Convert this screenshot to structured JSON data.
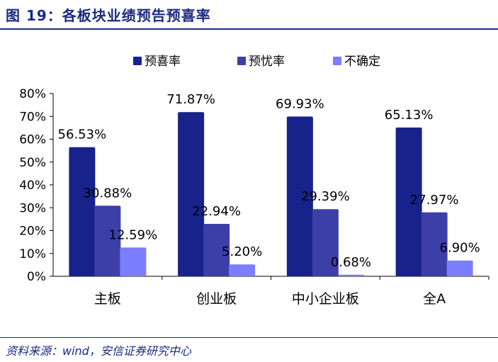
{
  "header": {
    "title": "图 19：各板块业绩预告预喜率"
  },
  "source": {
    "text": "资料来源：wind，安信证券研究中心"
  },
  "colors": {
    "预喜率": "#17238a",
    "预忧率": "#3d3fa8",
    "不确定": "#7b7eff"
  },
  "chart_data": {
    "type": "bar",
    "categories": [
      "主板",
      "创业板",
      "中小企业板",
      "全A"
    ],
    "series": [
      {
        "name": "预喜率",
        "values": [
          56.53,
          71.87,
          69.93,
          65.13
        ],
        "labels": [
          "56.53%",
          "71.87%",
          "69.93%",
          "65.13%"
        ]
      },
      {
        "name": "预忧率",
        "values": [
          30.88,
          22.94,
          29.39,
          27.97
        ],
        "labels": [
          "30.88%",
          "22.94%",
          "29.39%",
          "27.97%"
        ]
      },
      {
        "name": "不确定",
        "values": [
          12.59,
          5.2,
          0.68,
          6.9
        ],
        "labels": [
          "12.59%",
          "5.20%",
          "0.68%",
          "6.90%"
        ]
      }
    ],
    "ylim": [
      0,
      80
    ],
    "yticks": [
      "0%",
      "10%",
      "20%",
      "30%",
      "40%",
      "50%",
      "60%",
      "70%",
      "80%"
    ],
    "legend_position": "top",
    "grid": false
  }
}
